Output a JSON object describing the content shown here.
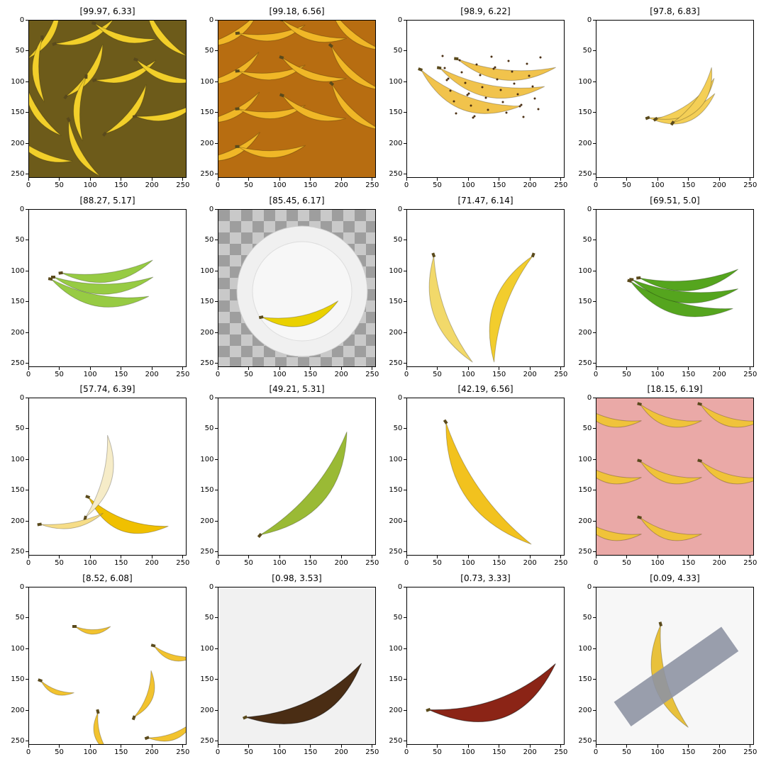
{
  "figure": {
    "panels": [
      {
        "title": "[99.97, 6.33]",
        "scene": "bunch-pile",
        "color_main": "#f2cf2a",
        "color_bg": "#6d5b1a"
      },
      {
        "title": "[99.18, 6.56]",
        "scene": "bunch-pile-orange",
        "color_main": "#f0b727",
        "color_bg": "#b76d11"
      },
      {
        "title": "[98.9, 6.22]",
        "scene": "spotted-bunch",
        "color_main": "#f1c34c",
        "color_bg": "#ffffff"
      },
      {
        "title": "[97.8, 6.83]",
        "scene": "small-bunch",
        "color_main": "#f4cf56",
        "color_bg": "#ffffff"
      },
      {
        "title": "[88.27, 5.17]",
        "scene": "green-bunch",
        "color_main": "#97cb43",
        "color_bg": "#ffffff"
      },
      {
        "title": "[85.45, 6.17]",
        "scene": "plate-banana",
        "color_main": "#ead100",
        "color_bg": "#c9c9c9"
      },
      {
        "title": "[71.47, 6.14]",
        "scene": "heart-peeled",
        "color_main": "#f2cd2d",
        "color_bg": "#ffffff"
      },
      {
        "title": "[69.51, 5.0]",
        "scene": "green-bunch-dark",
        "color_main": "#55a51e",
        "color_bg": "#ffffff"
      },
      {
        "title": "[57.74, 6.39]",
        "scene": "half-peeled",
        "color_main": "#f0c000",
        "color_bg": "#ffffff"
      },
      {
        "title": "[49.21, 5.31]",
        "scene": "single-green",
        "color_main": "#9aba35",
        "color_bg": "#ffffff"
      },
      {
        "title": "[42.19, 6.56]",
        "scene": "single-yellow",
        "color_main": "#f2c21e",
        "color_bg": "#ffffff"
      },
      {
        "title": "[18.15, 6.19]",
        "scene": "pink-pattern",
        "color_main": "#f0c33a",
        "color_bg": "#eaa9a7"
      },
      {
        "title": "[8.52, 6.08]",
        "scene": "scattered",
        "color_main": "#f2c32f",
        "color_bg": "#ffffff"
      },
      {
        "title": "[0.98, 3.53]",
        "scene": "rotten-brown",
        "color_main": "#4a2d14",
        "color_bg": "#f1f1f1"
      },
      {
        "title": "[0.73, 3.33]",
        "scene": "red-banana",
        "color_main": "#8b2416",
        "color_bg": "#ffffff"
      },
      {
        "title": "[0.09, 4.33]",
        "scene": "duct-tape",
        "color_main": "#e8c13b",
        "color_bg": "#f7f7f7"
      }
    ],
    "x_tick_labels": [
      "0",
      "50",
      "100",
      "150",
      "200",
      "250"
    ],
    "y_tick_labels": [
      "0",
      "50",
      "100",
      "150",
      "200",
      "250"
    ]
  }
}
